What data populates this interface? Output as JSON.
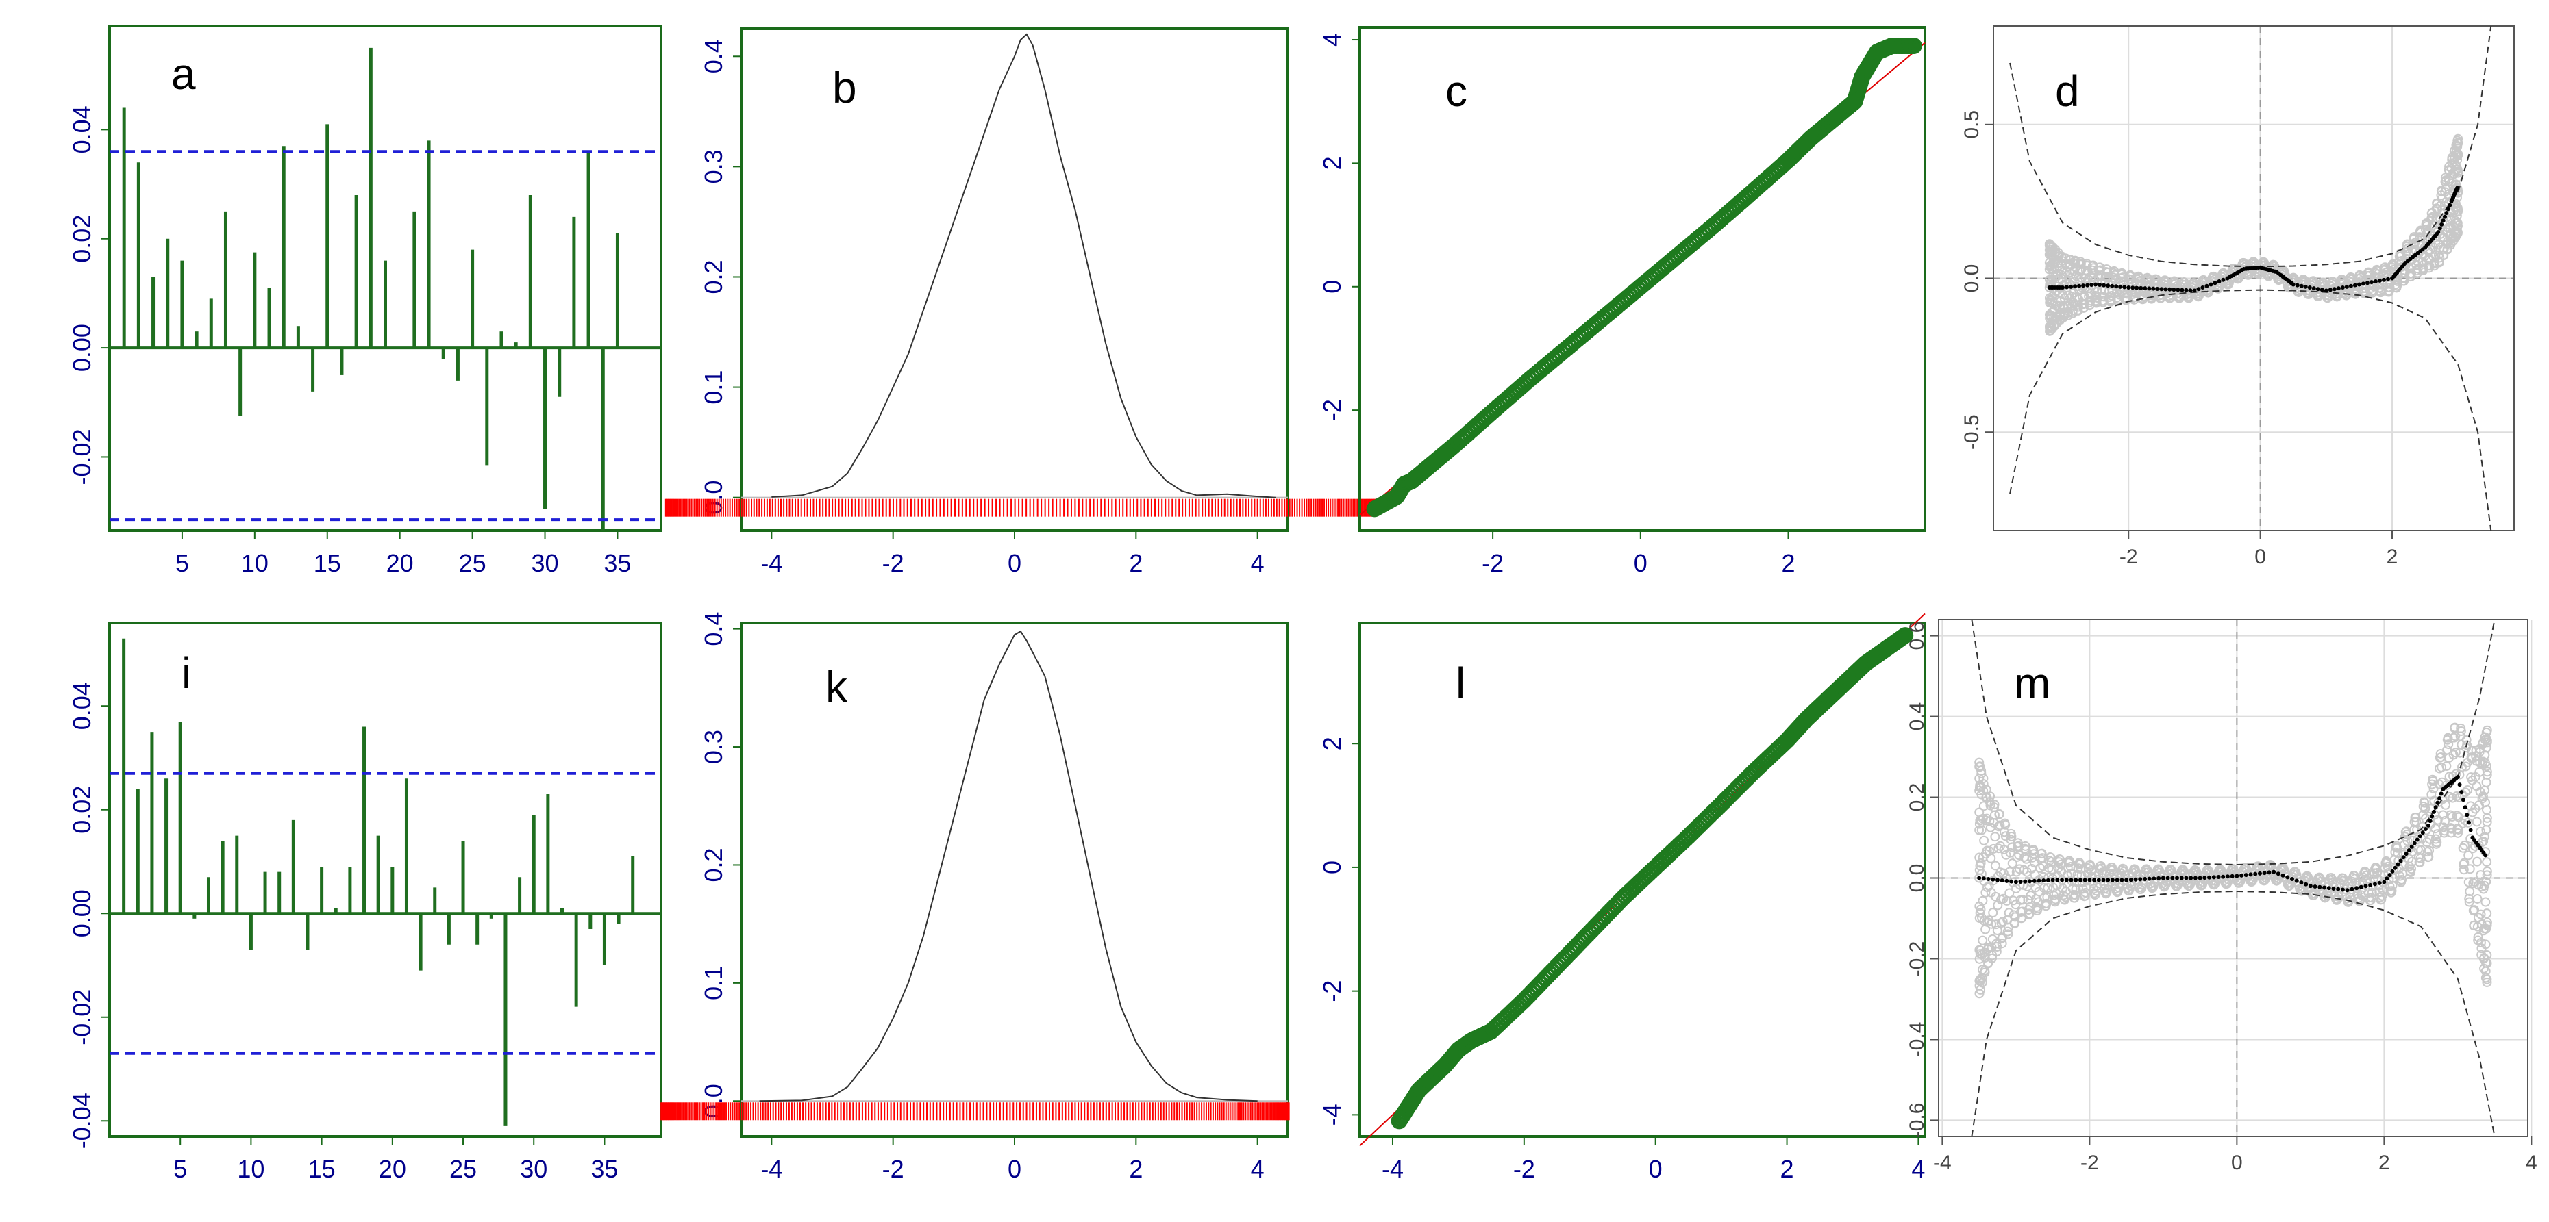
{
  "colors": {
    "frame": "#1a6b1a",
    "acf_bar": "#1f6e1f",
    "ci_line": "#1f1fd6",
    "density": "#333333",
    "rug": "#ff0000",
    "qq_point": "#1e7a1e",
    "qq_line": "#e00000",
    "worm_point": "#c8c8c8",
    "worm_smooth": "#000000",
    "worm_band": "#333333",
    "tick_text": "#00008b",
    "gray_text": "#444444"
  },
  "chart_data": [
    {
      "id": "a",
      "type": "bar",
      "label": "a",
      "xlim": [
        0,
        38
      ],
      "ylim": [
        -0.0335,
        0.059
      ],
      "xticks": [
        5,
        10,
        15,
        20,
        25,
        30,
        35
      ],
      "yticks": [
        -0.02,
        0,
        0.02,
        0.04
      ],
      "yticklabels": [
        "-0.02",
        "0.00",
        "0.02",
        "0.04"
      ],
      "ci": [
        0.036,
        -0.0315
      ],
      "lags": [
        1,
        2,
        3,
        4,
        5,
        6,
        7,
        8,
        9,
        10,
        11,
        12,
        13,
        14,
        15,
        16,
        17,
        18,
        19,
        20,
        21,
        22,
        23,
        24,
        25,
        26,
        27,
        28,
        29,
        30,
        31,
        32,
        33,
        34,
        35
      ],
      "values": [
        0.044,
        0.034,
        0.013,
        0.02,
        0.016,
        0.003,
        0.009,
        0.025,
        -0.0125,
        0.0175,
        0.011,
        0.037,
        0.004,
        -0.008,
        0.041,
        -0.005,
        0.028,
        0.055,
        0.016,
        0.0,
        0.025,
        0.038,
        -0.002,
        -0.006,
        0.018,
        -0.0215,
        0.003,
        0.001,
        0.028,
        -0.0295,
        -0.009,
        0.024,
        0.036,
        -0.0335,
        0.021
      ]
    },
    {
      "id": "b",
      "type": "line",
      "label": "b",
      "xlim": [
        -4.5,
        4.5
      ],
      "ylim": [
        -0.03,
        0.425
      ],
      "xticks": [
        -4,
        -2,
        0,
        2,
        4
      ],
      "yticks": [
        0,
        0.1,
        0.2,
        0.3,
        0.4
      ],
      "yticklabels": [
        "0.0",
        "0.1",
        "0.2",
        "0.3",
        "0.4"
      ],
      "x": [
        -4.0,
        -3.5,
        -3.0,
        -2.75,
        -2.5,
        -2.25,
        -2.0,
        -1.75,
        -1.5,
        -1.25,
        -1.0,
        -0.75,
        -0.5,
        -0.25,
        0.0,
        0.1,
        0.2,
        0.3,
        0.5,
        0.75,
        1.0,
        1.25,
        1.5,
        1.75,
        2.0,
        2.25,
        2.5,
        2.75,
        3.0,
        3.5,
        4.0,
        4.3
      ],
      "y": [
        0.0005,
        0.002,
        0.01,
        0.022,
        0.045,
        0.07,
        0.1,
        0.13,
        0.17,
        0.21,
        0.25,
        0.29,
        0.33,
        0.37,
        0.4,
        0.415,
        0.42,
        0.41,
        0.37,
        0.31,
        0.26,
        0.2,
        0.14,
        0.09,
        0.055,
        0.03,
        0.015,
        0.006,
        0.002,
        0.003,
        0.001,
        0.0
      ],
      "rug_range": [
        -3.8,
        4.0
      ]
    },
    {
      "id": "c",
      "type": "scatter",
      "label": "c",
      "xlim": [
        -3.8,
        3.85
      ],
      "ylim": [
        -3.95,
        4.2
      ],
      "xticks": [
        -2,
        0,
        2
      ],
      "yticks": [
        -2,
        0,
        2,
        4
      ],
      "yticklabels": [
        "-2",
        "0",
        "2",
        "4"
      ],
      "x": [
        -3.6,
        -3.3,
        -3.2,
        -3.1,
        -3.0,
        -2.8,
        -2.5,
        -2.0,
        -1.5,
        -1.0,
        -0.5,
        0.0,
        0.5,
        1.0,
        1.5,
        2.0,
        2.3,
        2.6,
        2.8,
        2.9,
        3.0,
        3.2,
        3.4,
        3.7
      ],
      "y": [
        -3.6,
        -3.4,
        -3.2,
        -3.15,
        -3.05,
        -2.85,
        -2.55,
        -2.02,
        -1.5,
        -1.0,
        -0.5,
        0.0,
        0.5,
        1.0,
        1.52,
        2.05,
        2.4,
        2.7,
        2.9,
        3.0,
        3.4,
        3.8,
        3.9,
        3.9
      ],
      "ref_line": {
        "slope": 1.0,
        "intercept": 0.1
      }
    },
    {
      "id": "d",
      "type": "scatter",
      "label": "d",
      "xlim": [
        -4.05,
        3.85
      ],
      "ylim": [
        -0.82,
        0.82
      ],
      "xticks": [
        -2,
        0,
        2
      ],
      "yticks": [
        -0.5,
        0,
        0.5
      ],
      "yticklabels": [
        "-0.5",
        "0.0",
        "0.5"
      ],
      "smooth_x": [
        -3.2,
        -3.0,
        -2.5,
        -2.0,
        -1.5,
        -1.0,
        -0.5,
        -0.25,
        0.0,
        0.25,
        0.5,
        1.0,
        1.5,
        2.0,
        2.2,
        2.5,
        2.7,
        2.9,
        3.0
      ],
      "smooth_y": [
        -0.03,
        -0.03,
        -0.02,
        -0.03,
        -0.035,
        -0.04,
        0.0,
        0.03,
        0.035,
        0.02,
        -0.02,
        -0.04,
        -0.02,
        0.0,
        0.05,
        0.1,
        0.15,
        0.25,
        0.3
      ],
      "band_x": [
        -3.8,
        -3.5,
        -3.0,
        -2.5,
        -2.0,
        -1.5,
        -1.0,
        -0.5,
        0.0,
        0.5,
        1.0,
        1.5,
        2.0,
        2.5,
        3.0,
        3.3,
        3.5
      ],
      "band_y": [
        0.7,
        0.38,
        0.18,
        0.11,
        0.075,
        0.055,
        0.045,
        0.04,
        0.038,
        0.04,
        0.045,
        0.055,
        0.08,
        0.13,
        0.28,
        0.5,
        0.85
      ]
    },
    {
      "id": "i",
      "type": "bar",
      "label": "i",
      "xlim": [
        0,
        39
      ],
      "ylim": [
        -0.043,
        0.056
      ],
      "xticks": [
        5,
        10,
        15,
        20,
        25,
        30,
        35
      ],
      "yticks": [
        -0.04,
        -0.02,
        0,
        0.02,
        0.04
      ],
      "yticklabels": [
        "-0.04",
        "-0.02",
        "0.00",
        "0.02",
        "0.04"
      ],
      "ci": [
        0.027,
        -0.027
      ],
      "lags": [
        1,
        2,
        3,
        4,
        5,
        6,
        7,
        8,
        9,
        10,
        11,
        12,
        13,
        14,
        15,
        16,
        17,
        18,
        19,
        20,
        21,
        22,
        23,
        24,
        25,
        26,
        27,
        28,
        29,
        30,
        31,
        32,
        33,
        34,
        35,
        36,
        37
      ],
      "values": [
        0.053,
        0.024,
        0.035,
        0.026,
        0.037,
        -0.001,
        0.007,
        0.014,
        0.015,
        -0.007,
        0.008,
        0.008,
        0.018,
        -0.007,
        0.009,
        0.001,
        0.009,
        0.036,
        0.015,
        0.009,
        0.026,
        -0.011,
        0.005,
        -0.006,
        0.014,
        -0.006,
        -0.001,
        -0.041,
        0.007,
        0.019,
        0.023,
        0.001,
        -0.018,
        -0.003,
        -0.01,
        -0.002,
        0.011
      ]
    },
    {
      "id": "k",
      "type": "line",
      "label": "k",
      "xlim": [
        -4.5,
        4.5
      ],
      "ylim": [
        -0.03,
        0.405
      ],
      "xticks": [
        -4,
        -2,
        0,
        2,
        4
      ],
      "yticks": [
        0,
        0.1,
        0.2,
        0.3,
        0.4
      ],
      "yticklabels": [
        "0.0",
        "0.1",
        "0.2",
        "0.3",
        "0.4"
      ],
      "x": [
        -4.2,
        -3.5,
        -3.0,
        -2.75,
        -2.5,
        -2.25,
        -2.0,
        -1.75,
        -1.5,
        -1.25,
        -1.0,
        -0.75,
        -0.5,
        -0.25,
        -0.1,
        0.0,
        0.1,
        0.2,
        0.3,
        0.5,
        0.75,
        1.0,
        1.25,
        1.5,
        1.75,
        2.0,
        2.25,
        2.5,
        2.75,
        3.0,
        3.5,
        4.0
      ],
      "y": [
        0.0,
        0.0005,
        0.004,
        0.012,
        0.028,
        0.045,
        0.07,
        0.1,
        0.14,
        0.19,
        0.24,
        0.29,
        0.34,
        0.37,
        0.385,
        0.395,
        0.398,
        0.39,
        0.38,
        0.36,
        0.31,
        0.25,
        0.19,
        0.13,
        0.08,
        0.05,
        0.03,
        0.015,
        0.007,
        0.003,
        0.001,
        0.0
      ],
      "rug_range": [
        -4.1,
        2.8
      ]
    },
    {
      "id": "l",
      "type": "scatter",
      "label": "l",
      "xlim": [
        -4.5,
        4.1
      ],
      "ylim": [
        -4.35,
        3.95
      ],
      "xticks": [
        -4,
        -2,
        0,
        2,
        4
      ],
      "yticks": [
        -4,
        -2,
        0,
        2
      ],
      "yticklabels": [
        "-4",
        "-2",
        "0",
        "2"
      ],
      "x": [
        -3.9,
        -3.6,
        -3.4,
        -3.2,
        -3.0,
        -2.8,
        -2.5,
        -2.0,
        -1.5,
        -1.0,
        -0.5,
        0.0,
        0.5,
        1.0,
        1.5,
        2.0,
        2.3,
        2.6,
        2.8,
        3.0,
        3.2,
        3.4,
        3.6,
        3.8
      ],
      "y": [
        -4.1,
        -3.6,
        -3.4,
        -3.2,
        -2.95,
        -2.8,
        -2.65,
        -2.15,
        -1.6,
        -1.05,
        -0.5,
        0.0,
        0.5,
        1.02,
        1.55,
        2.05,
        2.4,
        2.7,
        2.9,
        3.1,
        3.3,
        3.45,
        3.6,
        3.75
      ],
      "ref_line": {
        "slope": 1.0,
        "intercept": 0.0
      }
    },
    {
      "id": "m",
      "type": "scatter",
      "label": "m",
      "xlim": [
        -4.05,
        3.95
      ],
      "ylim": [
        -0.64,
        0.64
      ],
      "xticks": [
        -4,
        -2,
        0,
        2,
        4
      ],
      "yticks": [
        -0.6,
        -0.4,
        -0.2,
        0,
        0.2,
        0.4,
        0.6
      ],
      "yticklabels": [
        "-0.6",
        "-0.4",
        "-0.2",
        "0.0",
        "0.2",
        "0.4",
        "0.6"
      ],
      "smooth_x": [
        -3.5,
        -3.0,
        -2.5,
        -2.0,
        -1.5,
        -1.0,
        -0.5,
        0.0,
        0.5,
        1.0,
        1.5,
        2.0,
        2.3,
        2.6,
        2.8,
        3.0,
        3.2,
        3.4
      ],
      "smooth_y": [
        0.0,
        -0.01,
        -0.005,
        -0.005,
        -0.005,
        0.0,
        0.0,
        0.005,
        0.015,
        -0.02,
        -0.03,
        -0.01,
        0.06,
        0.13,
        0.22,
        0.25,
        0.1,
        0.05
      ],
      "band_x": [
        -3.6,
        -3.4,
        -3.0,
        -2.5,
        -2.0,
        -1.5,
        -1.0,
        -0.5,
        0.0,
        0.5,
        1.0,
        1.5,
        2.0,
        2.5,
        3.0,
        3.3,
        3.5
      ],
      "band_y": [
        0.65,
        0.4,
        0.18,
        0.1,
        0.07,
        0.05,
        0.04,
        0.035,
        0.033,
        0.035,
        0.04,
        0.055,
        0.08,
        0.12,
        0.25,
        0.45,
        0.7
      ]
    }
  ]
}
